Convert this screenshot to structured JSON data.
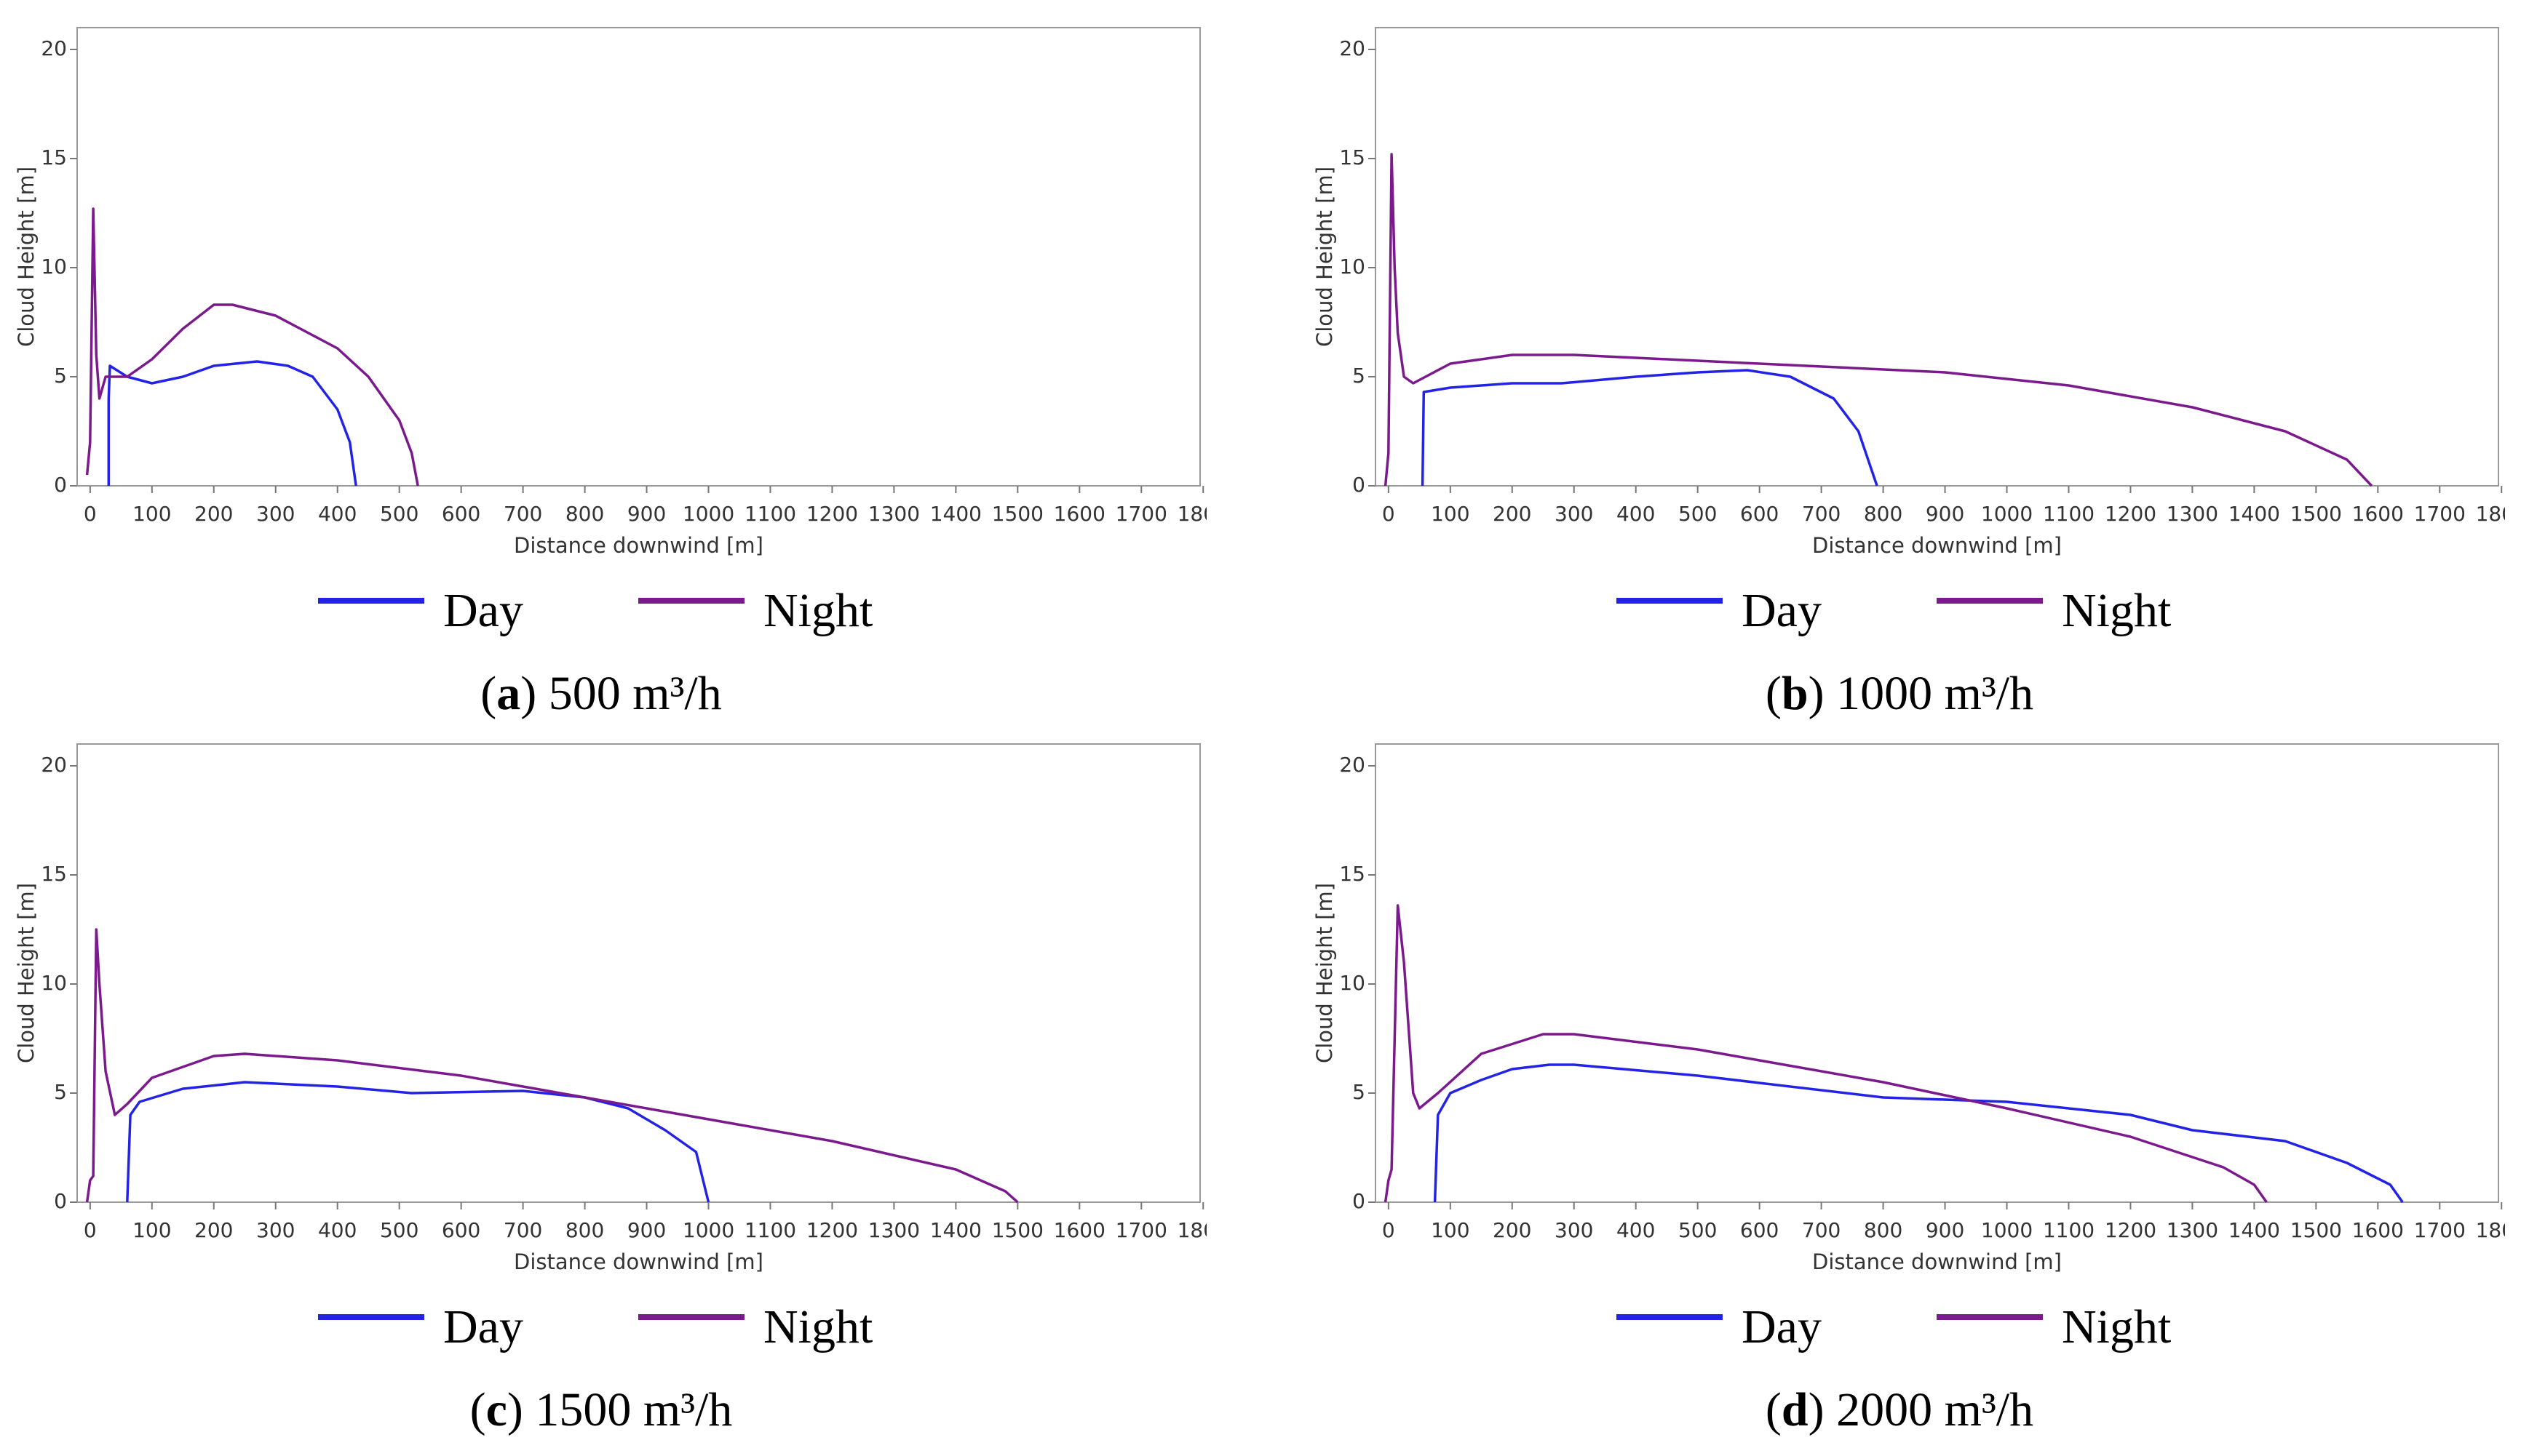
{
  "chart_data": [
    {
      "type": "line",
      "xlabel": "Distance downwind [m]",
      "ylabel": "Cloud Height [m]",
      "xlim": [
        -21,
        1795
      ],
      "ylim": [
        0,
        21
      ],
      "xticks": [
        0,
        100,
        200,
        300,
        400,
        500,
        600,
        700,
        800,
        900,
        1000,
        1100,
        1200,
        1300,
        1400,
        1500,
        1600,
        1700,
        1800
      ],
      "yticks": [
        0,
        5,
        10,
        15,
        20
      ],
      "caption": [
        "(",
        "a",
        ") 500 m³/h"
      ],
      "series": [
        {
          "name": "Day",
          "color": "#2323e6",
          "x": [
            30,
            30,
            32,
            60,
            100,
            150,
            200,
            270,
            320,
            360,
            400,
            420,
            430
          ],
          "values": [
            0,
            4,
            5.5,
            5,
            4.7,
            5,
            5.5,
            5.7,
            5.5,
            5,
            3.5,
            2,
            0
          ]
        },
        {
          "name": "Night",
          "color": "#7b1a8c",
          "x": [
            -5,
            0,
            5,
            10,
            15,
            25,
            60,
            100,
            150,
            200,
            230,
            300,
            400,
            450,
            500,
            520,
            530
          ],
          "values": [
            0.5,
            2,
            12.7,
            6,
            4,
            5,
            5,
            5.8,
            7.2,
            8.3,
            8.3,
            7.8,
            6.3,
            5,
            3,
            1.5,
            0
          ]
        }
      ]
    },
    {
      "type": "line",
      "xlabel": "Distance downwind [m]",
      "ylabel": "Cloud Height [m]",
      "xlim": [
        -21,
        1795
      ],
      "ylim": [
        0,
        21
      ],
      "xticks": [
        0,
        100,
        200,
        300,
        400,
        500,
        600,
        700,
        800,
        900,
        1000,
        1100,
        1200,
        1300,
        1400,
        1500,
        1600,
        1700,
        1800
      ],
      "yticks": [
        0,
        5,
        10,
        15,
        20
      ],
      "caption": [
        "(",
        "b",
        ") 1000 m³/h"
      ],
      "series": [
        {
          "name": "Day",
          "color": "#2323e6",
          "x": [
            55,
            57,
            100,
            200,
            280,
            400,
            500,
            580,
            650,
            720,
            760,
            790
          ],
          "values": [
            0,
            4.3,
            4.5,
            4.7,
            4.7,
            5,
            5.2,
            5.3,
            5,
            4,
            2.5,
            0
          ]
        },
        {
          "name": "Night",
          "color": "#7b1a8c",
          "x": [
            -5,
            0,
            5,
            10,
            15,
            25,
            40,
            60,
            100,
            200,
            300,
            600,
            900,
            1100,
            1300,
            1450,
            1550,
            1590
          ],
          "values": [
            0,
            1.5,
            15.2,
            10,
            7,
            5,
            4.7,
            5,
            5.6,
            6,
            6,
            5.6,
            5.2,
            4.6,
            3.6,
            2.5,
            1.2,
            0
          ]
        }
      ]
    },
    {
      "type": "line",
      "xlabel": "Distance downwind [m]",
      "ylabel": "Cloud Height [m]",
      "xlim": [
        -21,
        1795
      ],
      "ylim": [
        0,
        21
      ],
      "xticks": [
        0,
        100,
        200,
        300,
        400,
        500,
        600,
        700,
        800,
        900,
        1000,
        1100,
        1200,
        1300,
        1400,
        1500,
        1600,
        1700,
        1800
      ],
      "yticks": [
        0,
        5,
        10,
        15,
        20
      ],
      "caption": [
        "(",
        "c",
        ") 1500 m³/h"
      ],
      "series": [
        {
          "name": "Day",
          "color": "#2323e6",
          "x": [
            60,
            65,
            80,
            150,
            250,
            400,
            520,
            700,
            800,
            870,
            930,
            980,
            1000
          ],
          "values": [
            0,
            4,
            4.6,
            5.2,
            5.5,
            5.3,
            5,
            5.1,
            4.8,
            4.3,
            3.3,
            2.3,
            0
          ]
        },
        {
          "name": "Night",
          "color": "#7b1a8c",
          "x": [
            -5,
            0,
            5,
            10,
            15,
            25,
            40,
            60,
            100,
            200,
            250,
            400,
            600,
            800,
            1000,
            1200,
            1400,
            1480,
            1500
          ],
          "values": [
            0,
            1,
            1.2,
            12.5,
            10,
            6,
            4,
            4.5,
            5.7,
            6.7,
            6.8,
            6.5,
            5.8,
            4.8,
            3.8,
            2.8,
            1.5,
            0.5,
            0
          ]
        }
      ]
    },
    {
      "type": "line",
      "xlabel": "Distance downwind [m]",
      "ylabel": "Cloud Height [m]",
      "xlim": [
        -21,
        1795
      ],
      "ylim": [
        0,
        21
      ],
      "xticks": [
        0,
        100,
        200,
        300,
        400,
        500,
        600,
        700,
        800,
        900,
        1000,
        1100,
        1200,
        1300,
        1400,
        1500,
        1600,
        1700,
        1800
      ],
      "yticks": [
        0,
        5,
        10,
        15,
        20
      ],
      "caption": [
        "(",
        "d",
        ") 2000 m³/h"
      ],
      "series": [
        {
          "name": "Day",
          "color": "#2323e6",
          "x": [
            75,
            80,
            100,
            150,
            200,
            260,
            300,
            500,
            800,
            900,
            1000,
            1200,
            1300,
            1450,
            1550,
            1620,
            1640
          ],
          "values": [
            0,
            4,
            5,
            5.6,
            6.1,
            6.3,
            6.3,
            5.8,
            4.8,
            4.7,
            4.6,
            4,
            3.3,
            2.8,
            1.8,
            0.8,
            0
          ]
        },
        {
          "name": "Night",
          "color": "#7b1a8c",
          "x": [
            -5,
            0,
            5,
            15,
            25,
            40,
            50,
            80,
            150,
            250,
            300,
            500,
            800,
            1000,
            1200,
            1350,
            1400,
            1420
          ],
          "values": [
            0,
            1,
            1.5,
            13.6,
            11,
            5,
            4.3,
            5,
            6.8,
            7.7,
            7.7,
            7,
            5.5,
            4.3,
            3,
            1.6,
            0.8,
            0
          ]
        }
      ]
    }
  ]
}
